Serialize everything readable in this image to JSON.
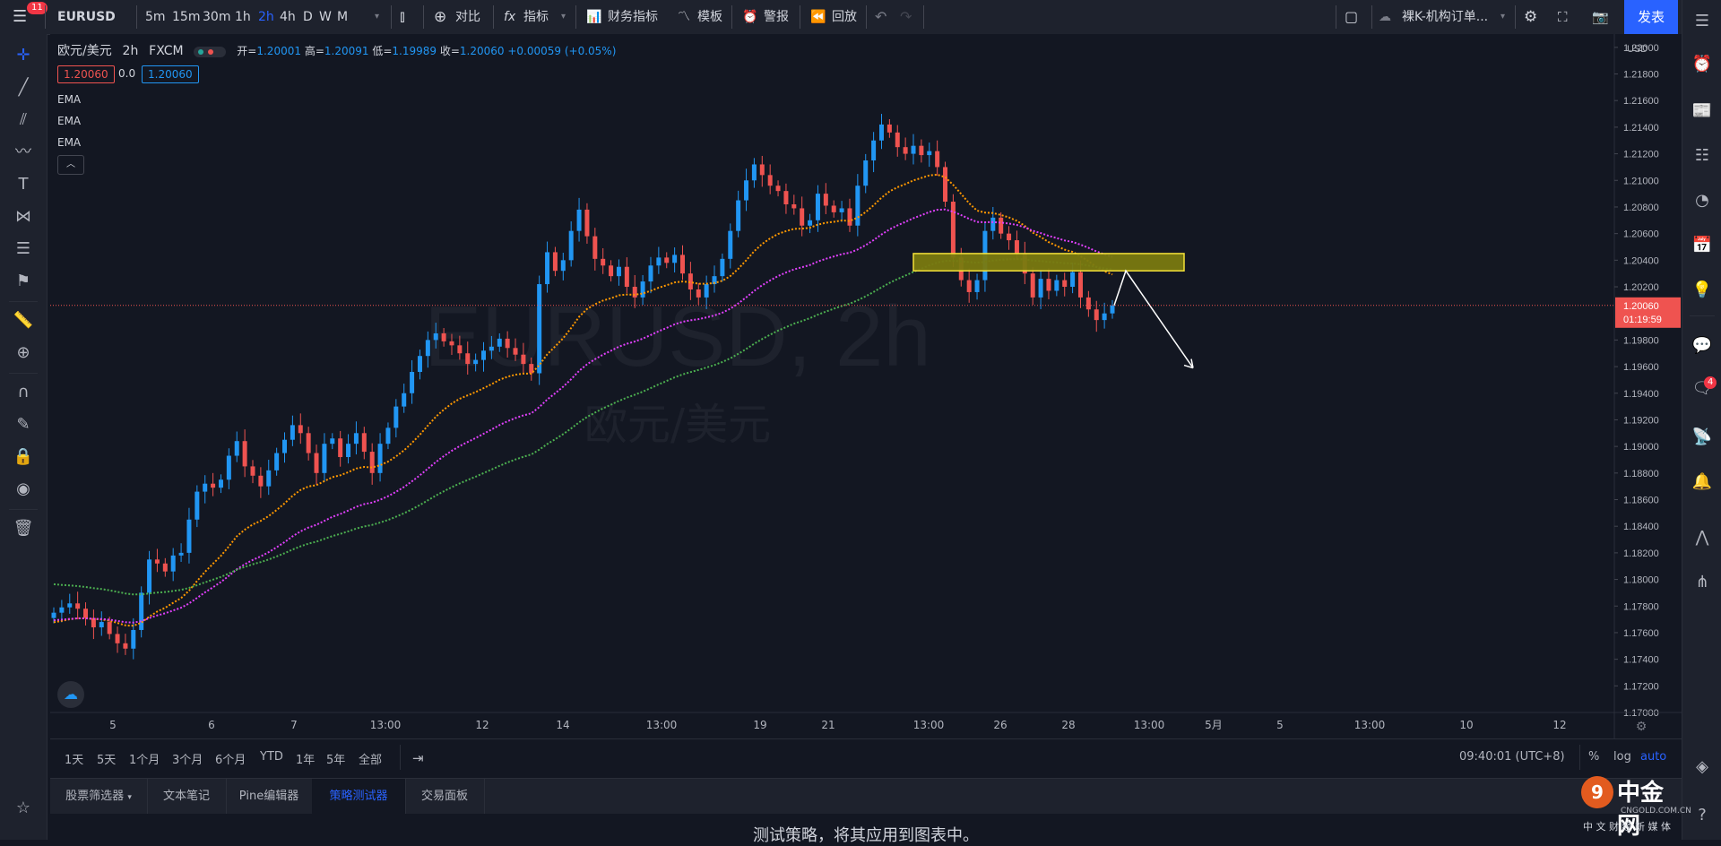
{
  "topbar": {
    "menu_badge": "11",
    "symbol": "EURUSD",
    "intervals": [
      "5m",
      "15m",
      "30m",
      "1h",
      "2h",
      "4h",
      "D",
      "W",
      "M"
    ],
    "active_interval": "2h",
    "compare": "对比",
    "indicators": "指标",
    "financials": "财务指标",
    "templates": "模板",
    "alert": "警报",
    "replay": "回放",
    "layout_name": "裸K-机构订单...",
    "publish": "发表"
  },
  "legend": {
    "title": "欧元/美元",
    "interval": "2h",
    "source": "FXCM",
    "open_label": "开=",
    "open": "1.20001",
    "high_label": "高=",
    "high": "1.20091",
    "low_label": "低=",
    "low": "1.19989",
    "close_label": "收=",
    "close": "1.20060",
    "change": "+0.00059 (+0.05%)",
    "sell_price": "1.20060",
    "spread": "0.0",
    "buy_price": "1.20060",
    "ema_labels": [
      "EMA",
      "EMA",
      "EMA"
    ]
  },
  "watermark": {
    "symbol": "EURUSD, 2h",
    "name": "欧元/美元"
  },
  "price_axis": {
    "currency": "USD",
    "ticks": [
      "1.22000",
      "1.21800",
      "1.21600",
      "1.21400",
      "1.21200",
      "1.21000",
      "1.20800",
      "1.20600",
      "1.20400",
      "1.20200",
      "1.19800",
      "1.19600",
      "1.19400",
      "1.19200",
      "1.19000",
      "1.18800",
      "1.18600",
      "1.18400",
      "1.18200",
      "1.18000",
      "1.17800",
      "1.17600",
      "1.17400",
      "1.17200",
      "1.17000"
    ],
    "last_price": "1.20060",
    "countdown": "01:19:59"
  },
  "time_axis": {
    "ticks": [
      "5",
      "6",
      "7",
      "13:00",
      "12",
      "14",
      "13:00",
      "19",
      "21",
      "13:00",
      "26",
      "28",
      "13:00",
      "5月",
      "5",
      "13:00",
      "10",
      "12"
    ]
  },
  "range_bar": {
    "ranges": [
      "1天",
      "5天",
      "1个月",
      "3个月",
      "6个月",
      "YTD",
      "1年",
      "5年",
      "全部"
    ],
    "time": "09:40:01 (UTC+8)",
    "percent": "%",
    "log": "log",
    "auto": "auto"
  },
  "panel_tabs": [
    "股票筛选器",
    "文本笔记",
    "Pine编辑器",
    "策略测试器",
    "交易面板"
  ],
  "active_panel": "策略测试器",
  "panel_message": "测试策略，将其应用到图表中。",
  "right_badge": "4",
  "brand": {
    "name": "中金网",
    "domain": "CNGOLD.COM.CN",
    "tagline": "中 文 财 经 新 媒 体"
  },
  "colors": {
    "up": "#2196f3",
    "down": "#ef5350",
    "ema_fast": "#ff9800",
    "ema_mid": "#e040fb",
    "ema_slow": "#4caf50",
    "zone_fill": "#7a7a10",
    "zone_border": "#ffeb3b",
    "accent": "#2962ff"
  },
  "chart_data": {
    "type": "candlestick",
    "price_range": [
      1.17,
      1.221
    ],
    "last_price": 1.2006,
    "closes": [
      1.1775,
      1.1779,
      1.1782,
      1.1778,
      1.1771,
      1.1764,
      1.1768,
      1.1759,
      1.1752,
      1.1748,
      1.1762,
      1.179,
      1.1815,
      1.1812,
      1.1806,
      1.1818,
      1.182,
      1.1845,
      1.1866,
      1.1872,
      1.1869,
      1.1875,
      1.1893,
      1.1904,
      1.1885,
      1.1878,
      1.187,
      1.1882,
      1.1895,
      1.1905,
      1.1916,
      1.191,
      1.1895,
      1.188,
      1.1902,
      1.1906,
      1.1892,
      1.1902,
      1.191,
      1.1896,
      1.188,
      1.1902,
      1.1914,
      1.193,
      1.194,
      1.1956,
      1.1968,
      1.198,
      1.1985,
      1.1979,
      1.1976,
      1.197,
      1.1962,
      1.1965,
      1.1972,
      1.1975,
      1.1981,
      1.1974,
      1.1969,
      1.1962,
      1.1955,
      1.2022,
      1.2046,
      1.2032,
      1.204,
      1.2062,
      1.2078,
      1.2058,
      1.2041,
      1.2036,
      1.2028,
      1.2035,
      1.202,
      1.2012,
      1.2024,
      1.2036,
      1.2042,
      1.2038,
      1.2044,
      1.203,
      1.2018,
      1.2012,
      1.2022,
      1.2028,
      1.2041,
      1.2062,
      1.2085,
      1.21,
      1.2112,
      1.2104,
      1.2096,
      1.2092,
      1.2082,
      1.2079,
      1.2066,
      1.207,
      1.209,
      1.2081,
      1.2076,
      1.2079,
      1.2066,
      1.2096,
      1.2115,
      1.213,
      1.2142,
      1.2136,
      1.2125,
      1.212,
      1.2126,
      1.2119,
      1.2122,
      1.211,
      1.2084,
      1.2042,
      1.2025,
      1.2016,
      1.2025,
      1.2062,
      1.2072,
      1.206,
      1.2055,
      1.2045,
      1.203,
      1.2012,
      1.2026,
      1.2017,
      1.2025,
      1.202,
      1.2031,
      1.2012,
      1.2003,
      1.1995,
      1.2,
      1.2006
    ],
    "ema_fast_last": 1.2038,
    "ema_mid_last": 1.204,
    "ema_slow_last": 1.2042,
    "zone": {
      "price_high": 1.2045,
      "price_low": 1.2032
    },
    "annotation": "arrow from the yellow zone pointing down-right"
  }
}
